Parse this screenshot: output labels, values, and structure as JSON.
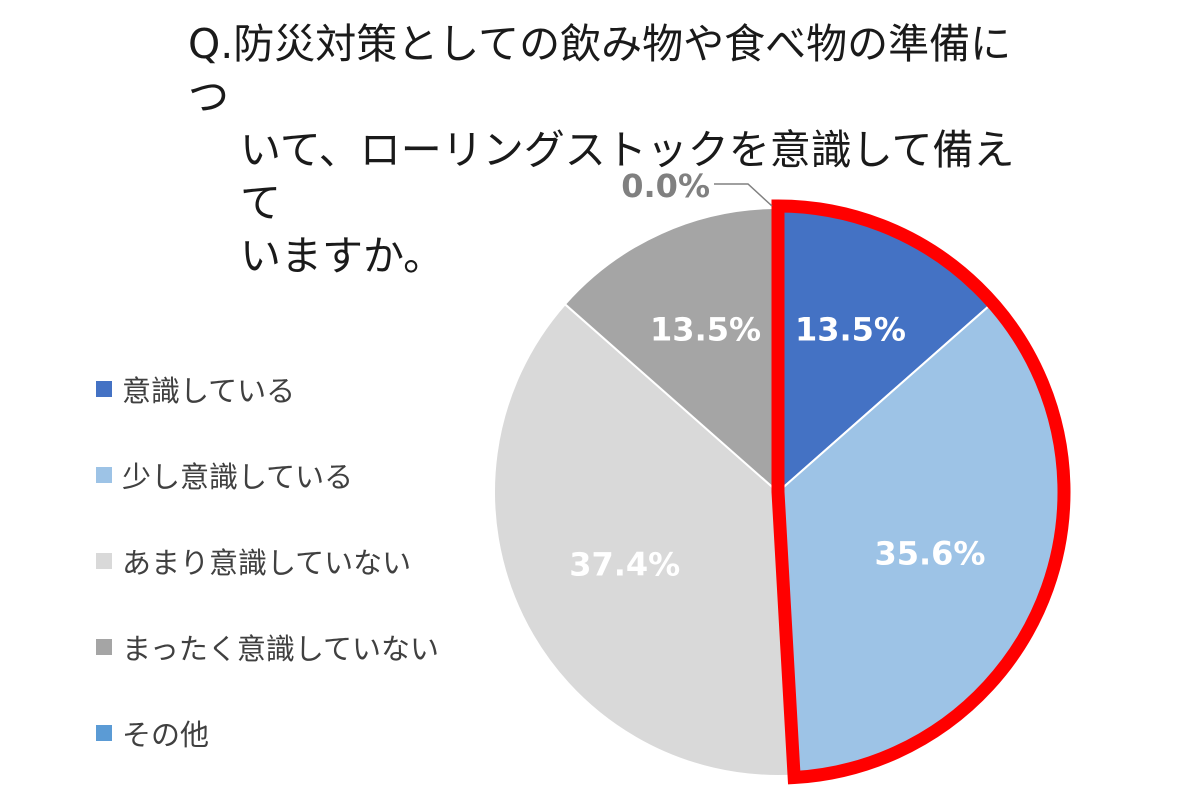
{
  "title": {
    "line1": "Q.防災対策としての飲み物や食べ物の準備につ",
    "line2": "いて、ローリングストックを意識して備えて",
    "line3": "いますか。"
  },
  "chart_data": {
    "type": "pie",
    "title": "Q.防災対策としての飲み物や食べ物の準備について、ローリングストックを意識して備えていますか。",
    "slices": [
      {
        "label": "意識している",
        "value": 13.5,
        "display": "13.5%",
        "color": "#4472C4",
        "label_color": "#ffffff"
      },
      {
        "label": "少し意識している",
        "value": 35.6,
        "display": "35.6%",
        "color": "#9DC3E6",
        "label_color": "#ffffff"
      },
      {
        "label": "あまり意識していない",
        "value": 37.4,
        "display": "37.4%",
        "color": "#D9D9D9",
        "label_color": "#ffffff"
      },
      {
        "label": "まったく意識していない",
        "value": 13.5,
        "display": "13.5%",
        "color": "#A5A5A5",
        "label_color": "#ffffff"
      },
      {
        "label": "その他",
        "value": 0.0,
        "display": "0.0%",
        "color": "#5B9BD5",
        "label_color": "#808080"
      }
    ],
    "start": "top, clockwise",
    "legend_position": "left",
    "highlight": {
      "slices": [
        "意識している",
        "少し意識している"
      ],
      "color": "#FF0000"
    }
  }
}
